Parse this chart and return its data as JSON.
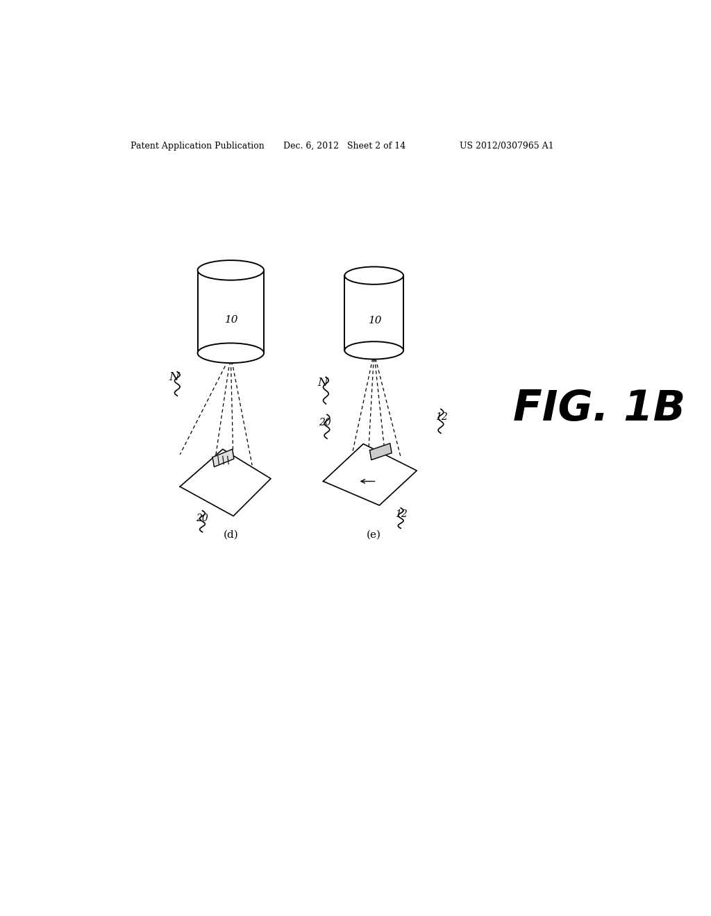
{
  "bg_color": "#ffffff",
  "header_left": "Patent Application Publication",
  "header_center": "Dec. 6, 2012   Sheet 2 of 14",
  "header_right": "US 2012/0307965 A1",
  "fig_label": "FIG. 1B",
  "panel_a_label": "(d)",
  "panel_b_label": "(e)",
  "label_10": "10",
  "label_20": "20",
  "label_12": "12",
  "label_N": "N",
  "line_color": "#000000",
  "cyl_lw": 1.4,
  "beam_lw": 0.9,
  "panel_lw": 1.2
}
